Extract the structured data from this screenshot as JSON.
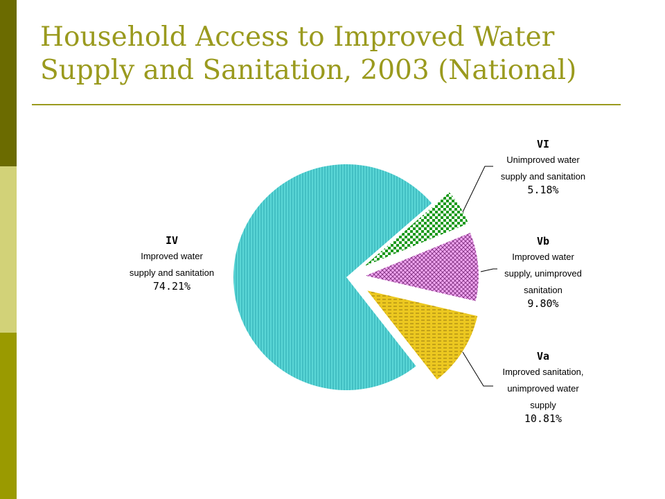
{
  "slide": {
    "title_line1": "Household Access to Improved Water",
    "title_line2": "Supply and Sanitation, 2003 (National)"
  },
  "chart_data": {
    "type": "pie",
    "title": "Household Access to Improved Water Supply and Sanitation, 2003 (National)",
    "slices": [
      {
        "code": "IV",
        "desc_lines": [
          "Improved water",
          "supply and sanitation"
        ],
        "value": 74.21,
        "value_label": "74.21%",
        "color": "#4fd0d0",
        "pattern": "vertical-lines",
        "exploded": false
      },
      {
        "code": "VI",
        "desc_lines": [
          "Unimproved water",
          "supply and sanitation"
        ],
        "value": 5.18,
        "value_label": "5.18%",
        "color": "#1a9a1a",
        "pattern": "checker",
        "exploded": true
      },
      {
        "code": "Vb",
        "desc_lines": [
          "Improved water",
          "supply, unimproved",
          "sanitation"
        ],
        "value": 9.8,
        "value_label": "9.80%",
        "color": "#e890e8",
        "pattern": "crosshatch",
        "exploded": true
      },
      {
        "code": "Va",
        "desc_lines": [
          "Improved sanitation,",
          "unimproved water",
          "supply"
        ],
        "value": 10.81,
        "value_label": "10.81%",
        "color": "#e8c81a",
        "pattern": "dashes",
        "exploded": true
      }
    ],
    "legend": "none"
  }
}
